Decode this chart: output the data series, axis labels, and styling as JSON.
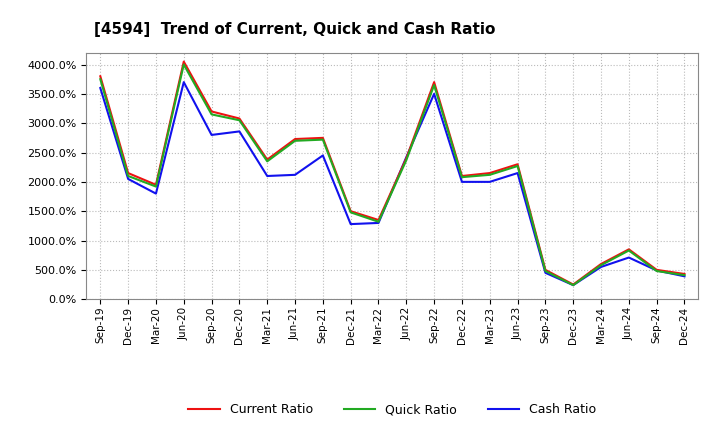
{
  "title": "[4594]  Trend of Current, Quick and Cash Ratio",
  "labels": [
    "Sep-19",
    "Dec-19",
    "Mar-20",
    "Jun-20",
    "Sep-20",
    "Dec-20",
    "Mar-21",
    "Jun-21",
    "Sep-21",
    "Dec-21",
    "Mar-22",
    "Jun-22",
    "Sep-22",
    "Dec-22",
    "Mar-23",
    "Jun-23",
    "Sep-23",
    "Dec-23",
    "Mar-24",
    "Jun-24",
    "Sep-24",
    "Dec-24"
  ],
  "current_ratio": [
    3800,
    2150,
    1950,
    4050,
    3200,
    3080,
    2380,
    2730,
    2750,
    1500,
    1350,
    2400,
    3700,
    2100,
    2150,
    2300,
    500,
    250,
    600,
    850,
    500,
    430
  ],
  "quick_ratio": [
    3750,
    2100,
    1920,
    4000,
    3150,
    3050,
    2350,
    2700,
    2720,
    1480,
    1320,
    2370,
    3650,
    2080,
    2120,
    2270,
    480,
    240,
    580,
    830,
    480,
    410
  ],
  "cash_ratio": [
    3600,
    2050,
    1800,
    3700,
    2800,
    2860,
    2100,
    2120,
    2450,
    1280,
    1300,
    2420,
    3500,
    2000,
    2000,
    2150,
    450,
    240,
    550,
    710,
    490,
    390
  ],
  "current_color": "#EE1111",
  "quick_color": "#22AA22",
  "cash_color": "#1111EE",
  "bg_color": "#FFFFFF",
  "plot_bg_color": "#FFFFFF",
  "grid_color": "#BBBBBB",
  "ylim": [
    0,
    4200
  ],
  "yticks": [
    0,
    500,
    1000,
    1500,
    2000,
    2500,
    3000,
    3500,
    4000
  ]
}
